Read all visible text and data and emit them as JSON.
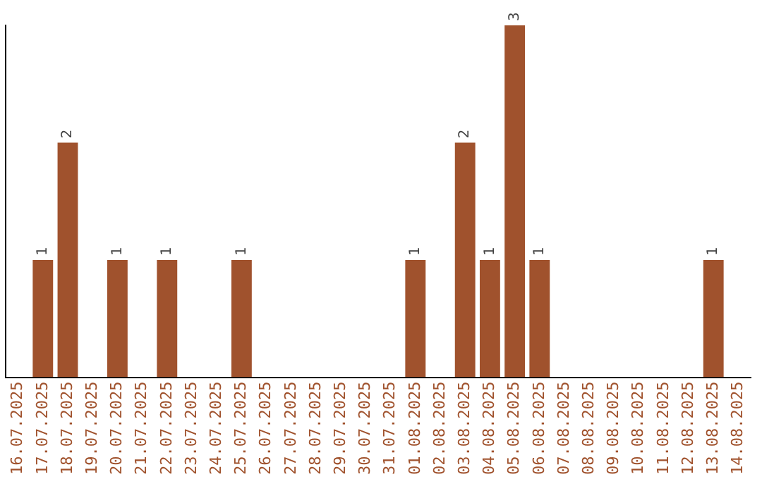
{
  "chart_data": {
    "type": "bar",
    "categories": [
      "16.07.2025",
      "17.07.2025",
      "18.07.2025",
      "19.07.2025",
      "20.07.2025",
      "21.07.2025",
      "22.07.2025",
      "23.07.2025",
      "24.07.2025",
      "25.07.2025",
      "26.07.2025",
      "27.07.2025",
      "28.07.2025",
      "29.07.2025",
      "30.07.2025",
      "31.07.2025",
      "01.08.2025",
      "02.08.2025",
      "03.08.2025",
      "04.08.2025",
      "05.08.2025",
      "06.08.2025",
      "07.08.2025",
      "08.08.2025",
      "09.08.2025",
      "10.08.2025",
      "11.08.2025",
      "12.08.2025",
      "13.08.2025",
      "14.08.2025"
    ],
    "values": [
      0,
      1,
      2,
      0,
      1,
      0,
      1,
      0,
      0,
      1,
      0,
      0,
      0,
      0,
      0,
      0,
      1,
      0,
      2,
      1,
      3,
      1,
      0,
      0,
      0,
      0,
      0,
      0,
      1,
      0
    ],
    "value_labels": [
      null,
      "1",
      "2",
      null,
      "1",
      null,
      "1",
      null,
      null,
      "1",
      null,
      null,
      null,
      null,
      null,
      null,
      "1",
      null,
      "2",
      "1",
      "3",
      "1",
      null,
      null,
      null,
      null,
      null,
      null,
      "1",
      null
    ],
    "color": "#a0522d",
    "grid": false,
    "legend": false,
    "tick_labels": "x"
  }
}
